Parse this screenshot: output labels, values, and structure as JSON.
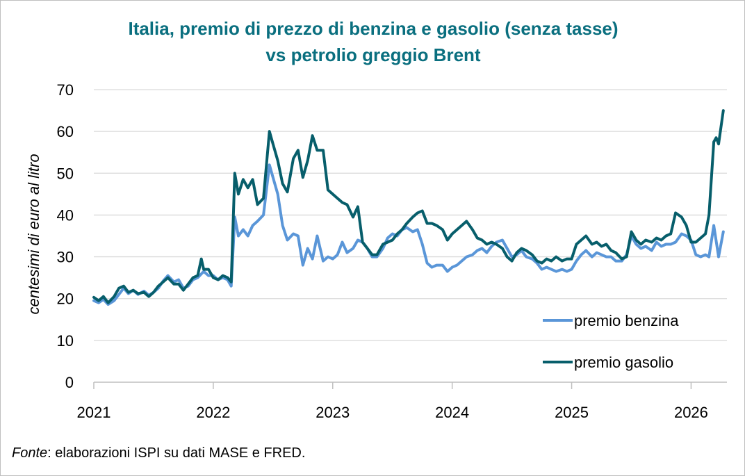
{
  "chart_data": {
    "type": "line",
    "title_lines": [
      "Italia, premio di prezzo di benzina e gasolio (senza tasse)",
      "vs petrolio greggio Brent"
    ],
    "ylabel": "centesimi di euro al litro",
    "xlabel": "",
    "ylim": [
      0,
      70
    ],
    "xlim": [
      2021,
      2026.3
    ],
    "yticks": [
      0,
      10,
      20,
      30,
      40,
      50,
      60,
      70
    ],
    "xticks": [
      2021,
      2022,
      2023,
      2024,
      2025,
      2026
    ],
    "grid": "horizontal",
    "legend_placement": "bottom-right",
    "series": [
      {
        "name": "premio benzina",
        "color": "#5a96d8",
        "points": [
          [
            2021.0,
            19.5
          ],
          [
            2021.04,
            19.0
          ],
          [
            2021.08,
            19.8
          ],
          [
            2021.12,
            18.6
          ],
          [
            2021.17,
            19.5
          ],
          [
            2021.21,
            21.0
          ],
          [
            2021.25,
            22.5
          ],
          [
            2021.29,
            21.2
          ],
          [
            2021.33,
            22.0
          ],
          [
            2021.37,
            21.0
          ],
          [
            2021.42,
            21.8
          ],
          [
            2021.46,
            20.8
          ],
          [
            2021.5,
            21.5
          ],
          [
            2021.54,
            22.5
          ],
          [
            2021.58,
            24.2
          ],
          [
            2021.62,
            25.5
          ],
          [
            2021.67,
            24.0
          ],
          [
            2021.71,
            24.5
          ],
          [
            2021.75,
            22.5
          ],
          [
            2021.79,
            23.0
          ],
          [
            2021.83,
            24.5
          ],
          [
            2021.87,
            25.0
          ],
          [
            2021.92,
            26.5
          ],
          [
            2021.96,
            25.5
          ],
          [
            2022.0,
            25.5
          ],
          [
            2022.04,
            24.5
          ],
          [
            2022.08,
            25.0
          ],
          [
            2022.12,
            24.5
          ],
          [
            2022.15,
            23.0
          ],
          [
            2022.18,
            39.5
          ],
          [
            2022.21,
            35.0
          ],
          [
            2022.25,
            36.5
          ],
          [
            2022.29,
            35.0
          ],
          [
            2022.33,
            37.5
          ],
          [
            2022.37,
            38.5
          ],
          [
            2022.42,
            40.0
          ],
          [
            2022.47,
            52.0
          ],
          [
            2022.5,
            49.0
          ],
          [
            2022.54,
            45.0
          ],
          [
            2022.58,
            37.5
          ],
          [
            2022.62,
            34.0
          ],
          [
            2022.67,
            35.5
          ],
          [
            2022.71,
            35.0
          ],
          [
            2022.75,
            28.0
          ],
          [
            2022.79,
            32.0
          ],
          [
            2022.83,
            29.5
          ],
          [
            2022.87,
            35.0
          ],
          [
            2022.92,
            29.0
          ],
          [
            2022.96,
            30.0
          ],
          [
            2023.0,
            29.5
          ],
          [
            2023.04,
            30.5
          ],
          [
            2023.08,
            33.5
          ],
          [
            2023.12,
            31.0
          ],
          [
            2023.17,
            32.0
          ],
          [
            2023.21,
            34.0
          ],
          [
            2023.25,
            33.5
          ],
          [
            2023.29,
            32.0
          ],
          [
            2023.33,
            30.0
          ],
          [
            2023.37,
            30.0
          ],
          [
            2023.42,
            32.0
          ],
          [
            2023.46,
            34.5
          ],
          [
            2023.5,
            35.5
          ],
          [
            2023.54,
            35.0
          ],
          [
            2023.58,
            36.5
          ],
          [
            2023.62,
            37.0
          ],
          [
            2023.67,
            36.0
          ],
          [
            2023.71,
            36.5
          ],
          [
            2023.75,
            33.0
          ],
          [
            2023.79,
            28.5
          ],
          [
            2023.83,
            27.5
          ],
          [
            2023.87,
            28.0
          ],
          [
            2023.92,
            28.0
          ],
          [
            2023.96,
            26.5
          ],
          [
            2024.0,
            27.5
          ],
          [
            2024.04,
            28.0
          ],
          [
            2024.08,
            29.0
          ],
          [
            2024.12,
            30.0
          ],
          [
            2024.17,
            30.5
          ],
          [
            2024.21,
            31.5
          ],
          [
            2024.25,
            32.0
          ],
          [
            2024.29,
            31.0
          ],
          [
            2024.33,
            32.5
          ],
          [
            2024.37,
            33.5
          ],
          [
            2024.42,
            34.0
          ],
          [
            2024.46,
            32.0
          ],
          [
            2024.5,
            30.0
          ],
          [
            2024.54,
            30.5
          ],
          [
            2024.58,
            31.5
          ],
          [
            2024.62,
            30.0
          ],
          [
            2024.67,
            29.5
          ],
          [
            2024.71,
            28.5
          ],
          [
            2024.75,
            27.0
          ],
          [
            2024.79,
            27.5
          ],
          [
            2024.83,
            27.0
          ],
          [
            2024.87,
            26.5
          ],
          [
            2024.92,
            27.0
          ],
          [
            2024.96,
            26.5
          ],
          [
            2025.0,
            27.0
          ],
          [
            2025.04,
            29.0
          ],
          [
            2025.08,
            30.5
          ],
          [
            2025.12,
            31.5
          ],
          [
            2025.17,
            30.0
          ],
          [
            2025.21,
            31.0
          ],
          [
            2025.25,
            30.5
          ],
          [
            2025.29,
            30.0
          ],
          [
            2025.33,
            30.0
          ],
          [
            2025.37,
            29.0
          ],
          [
            2025.42,
            29.0
          ],
          [
            2025.46,
            30.5
          ],
          [
            2025.5,
            35.0
          ],
          [
            2025.54,
            33.0
          ],
          [
            2025.58,
            32.0
          ],
          [
            2025.62,
            32.5
          ],
          [
            2025.67,
            31.5
          ],
          [
            2025.71,
            33.5
          ],
          [
            2025.75,
            32.5
          ],
          [
            2025.79,
            33.0
          ],
          [
            2025.83,
            33.0
          ],
          [
            2025.87,
            33.5
          ],
          [
            2025.92,
            35.5
          ],
          [
            2025.96,
            35.0
          ],
          [
            2026.0,
            34.0
          ],
          [
            2026.04,
            30.5
          ],
          [
            2026.08,
            30.0
          ],
          [
            2026.12,
            30.5
          ],
          [
            2026.15,
            30.0
          ],
          [
            2026.19,
            37.5
          ],
          [
            2026.23,
            30.0
          ],
          [
            2026.27,
            36.0
          ]
        ]
      },
      {
        "name": "premio gasolio",
        "color": "#075e6b",
        "points": [
          [
            2021.0,
            20.3
          ],
          [
            2021.04,
            19.5
          ],
          [
            2021.08,
            20.5
          ],
          [
            2021.12,
            19.0
          ],
          [
            2021.17,
            20.5
          ],
          [
            2021.21,
            22.5
          ],
          [
            2021.25,
            23.0
          ],
          [
            2021.29,
            21.5
          ],
          [
            2021.33,
            22.0
          ],
          [
            2021.37,
            21.2
          ],
          [
            2021.42,
            21.5
          ],
          [
            2021.46,
            20.5
          ],
          [
            2021.5,
            21.5
          ],
          [
            2021.54,
            23.0
          ],
          [
            2021.58,
            24.0
          ],
          [
            2021.62,
            25.0
          ],
          [
            2021.67,
            23.5
          ],
          [
            2021.71,
            23.5
          ],
          [
            2021.75,
            22.0
          ],
          [
            2021.79,
            23.5
          ],
          [
            2021.83,
            25.0
          ],
          [
            2021.87,
            25.5
          ],
          [
            2021.9,
            29.5
          ],
          [
            2021.92,
            27.0
          ],
          [
            2021.96,
            27.0
          ],
          [
            2022.0,
            25.0
          ],
          [
            2022.04,
            24.5
          ],
          [
            2022.08,
            25.5
          ],
          [
            2022.12,
            25.0
          ],
          [
            2022.15,
            24.0
          ],
          [
            2022.18,
            50.0
          ],
          [
            2022.21,
            45.0
          ],
          [
            2022.25,
            48.5
          ],
          [
            2022.29,
            46.5
          ],
          [
            2022.33,
            48.5
          ],
          [
            2022.37,
            42.5
          ],
          [
            2022.42,
            44.0
          ],
          [
            2022.47,
            60.0
          ],
          [
            2022.5,
            57.0
          ],
          [
            2022.54,
            53.0
          ],
          [
            2022.58,
            47.5
          ],
          [
            2022.62,
            45.5
          ],
          [
            2022.67,
            53.5
          ],
          [
            2022.71,
            55.5
          ],
          [
            2022.75,
            49.0
          ],
          [
            2022.79,
            53.0
          ],
          [
            2022.83,
            59.0
          ],
          [
            2022.87,
            55.5
          ],
          [
            2022.92,
            55.5
          ],
          [
            2022.96,
            46.0
          ],
          [
            2023.0,
            45.0
          ],
          [
            2023.04,
            44.0
          ],
          [
            2023.08,
            43.0
          ],
          [
            2023.12,
            42.5
          ],
          [
            2023.17,
            39.5
          ],
          [
            2023.21,
            42.0
          ],
          [
            2023.25,
            33.5
          ],
          [
            2023.29,
            32.0
          ],
          [
            2023.33,
            30.5
          ],
          [
            2023.37,
            30.5
          ],
          [
            2023.42,
            33.0
          ],
          [
            2023.46,
            33.5
          ],
          [
            2023.5,
            34.0
          ],
          [
            2023.54,
            35.5
          ],
          [
            2023.58,
            36.5
          ],
          [
            2023.62,
            38.0
          ],
          [
            2023.67,
            39.5
          ],
          [
            2023.71,
            40.5
          ],
          [
            2023.75,
            41.0
          ],
          [
            2023.79,
            38.0
          ],
          [
            2023.83,
            38.0
          ],
          [
            2023.87,
            37.5
          ],
          [
            2023.92,
            36.5
          ],
          [
            2023.96,
            34.0
          ],
          [
            2024.0,
            35.5
          ],
          [
            2024.04,
            36.5
          ],
          [
            2024.08,
            37.5
          ],
          [
            2024.12,
            38.5
          ],
          [
            2024.17,
            36.5
          ],
          [
            2024.21,
            34.5
          ],
          [
            2024.25,
            34.0
          ],
          [
            2024.29,
            33.0
          ],
          [
            2024.33,
            33.5
          ],
          [
            2024.37,
            33.0
          ],
          [
            2024.42,
            32.0
          ],
          [
            2024.46,
            30.0
          ],
          [
            2024.5,
            29.0
          ],
          [
            2024.54,
            31.0
          ],
          [
            2024.58,
            32.0
          ],
          [
            2024.62,
            31.5
          ],
          [
            2024.67,
            30.5
          ],
          [
            2024.71,
            29.0
          ],
          [
            2024.75,
            28.5
          ],
          [
            2024.79,
            29.5
          ],
          [
            2024.83,
            29.0
          ],
          [
            2024.87,
            30.0
          ],
          [
            2024.92,
            29.0
          ],
          [
            2024.96,
            29.5
          ],
          [
            2025.0,
            29.5
          ],
          [
            2025.04,
            33.0
          ],
          [
            2025.08,
            34.0
          ],
          [
            2025.12,
            35.0
          ],
          [
            2025.17,
            33.0
          ],
          [
            2025.21,
            33.5
          ],
          [
            2025.25,
            32.5
          ],
          [
            2025.29,
            33.0
          ],
          [
            2025.33,
            31.5
          ],
          [
            2025.37,
            31.0
          ],
          [
            2025.42,
            29.5
          ],
          [
            2025.46,
            30.0
          ],
          [
            2025.5,
            36.0
          ],
          [
            2025.54,
            34.0
          ],
          [
            2025.58,
            33.0
          ],
          [
            2025.62,
            34.0
          ],
          [
            2025.67,
            33.5
          ],
          [
            2025.71,
            34.5
          ],
          [
            2025.75,
            34.0
          ],
          [
            2025.79,
            35.0
          ],
          [
            2025.83,
            35.5
          ],
          [
            2025.87,
            40.5
          ],
          [
            2025.92,
            39.5
          ],
          [
            2025.96,
            37.5
          ],
          [
            2026.0,
            33.5
          ],
          [
            2026.04,
            33.5
          ],
          [
            2026.08,
            34.5
          ],
          [
            2026.12,
            35.5
          ],
          [
            2026.15,
            40.0
          ],
          [
            2026.19,
            57.5
          ],
          [
            2026.21,
            58.5
          ],
          [
            2026.23,
            57.0
          ],
          [
            2026.25,
            61.0
          ],
          [
            2026.27,
            65.0
          ]
        ]
      }
    ],
    "source_label": "Fonte",
    "source_text": ": elaborazioni ISPI su dati MASE e FRED."
  }
}
